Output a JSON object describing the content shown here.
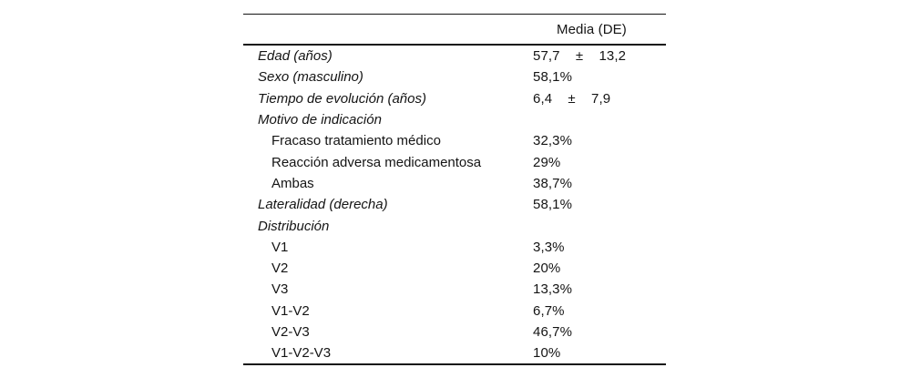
{
  "table": {
    "header": {
      "value_col": "Media (DE)"
    },
    "rows": [
      {
        "label": "Edad (años)",
        "value": "57,7 ± 13,2",
        "style": "main"
      },
      {
        "label": "Sexo (masculino)",
        "value": "58,1%",
        "style": "main"
      },
      {
        "label": "Tiempo de evolución (años)",
        "value": "6,4 ± 7,9",
        "style": "main"
      },
      {
        "label": "Motivo de indicación",
        "value": "",
        "style": "main"
      },
      {
        "label": "Fracaso tratamiento médico",
        "value": "32,3%",
        "style": "sub"
      },
      {
        "label": "Reacción adversa medicamentosa",
        "value": "29%",
        "style": "sub"
      },
      {
        "label": "Ambas",
        "value": "38,7%",
        "style": "sub"
      },
      {
        "label": "Lateralidad (derecha)",
        "value": "58,1%",
        "style": "main"
      },
      {
        "label": "Distribución",
        "value": "",
        "style": "main"
      },
      {
        "label": "V1",
        "value": "3,3%",
        "style": "sub"
      },
      {
        "label": "V2",
        "value": "20%",
        "style": "sub"
      },
      {
        "label": "V3",
        "value": "13,3%",
        "style": "sub"
      },
      {
        "label": "V1-V2",
        "value": "6,7%",
        "style": "sub"
      },
      {
        "label": "V2-V3",
        "value": "46,7%",
        "style": "sub"
      },
      {
        "label": "V1-V2-V3",
        "value": "10%",
        "style": "sub"
      }
    ],
    "text_color": "#141414",
    "background_color": "#ffffff"
  }
}
